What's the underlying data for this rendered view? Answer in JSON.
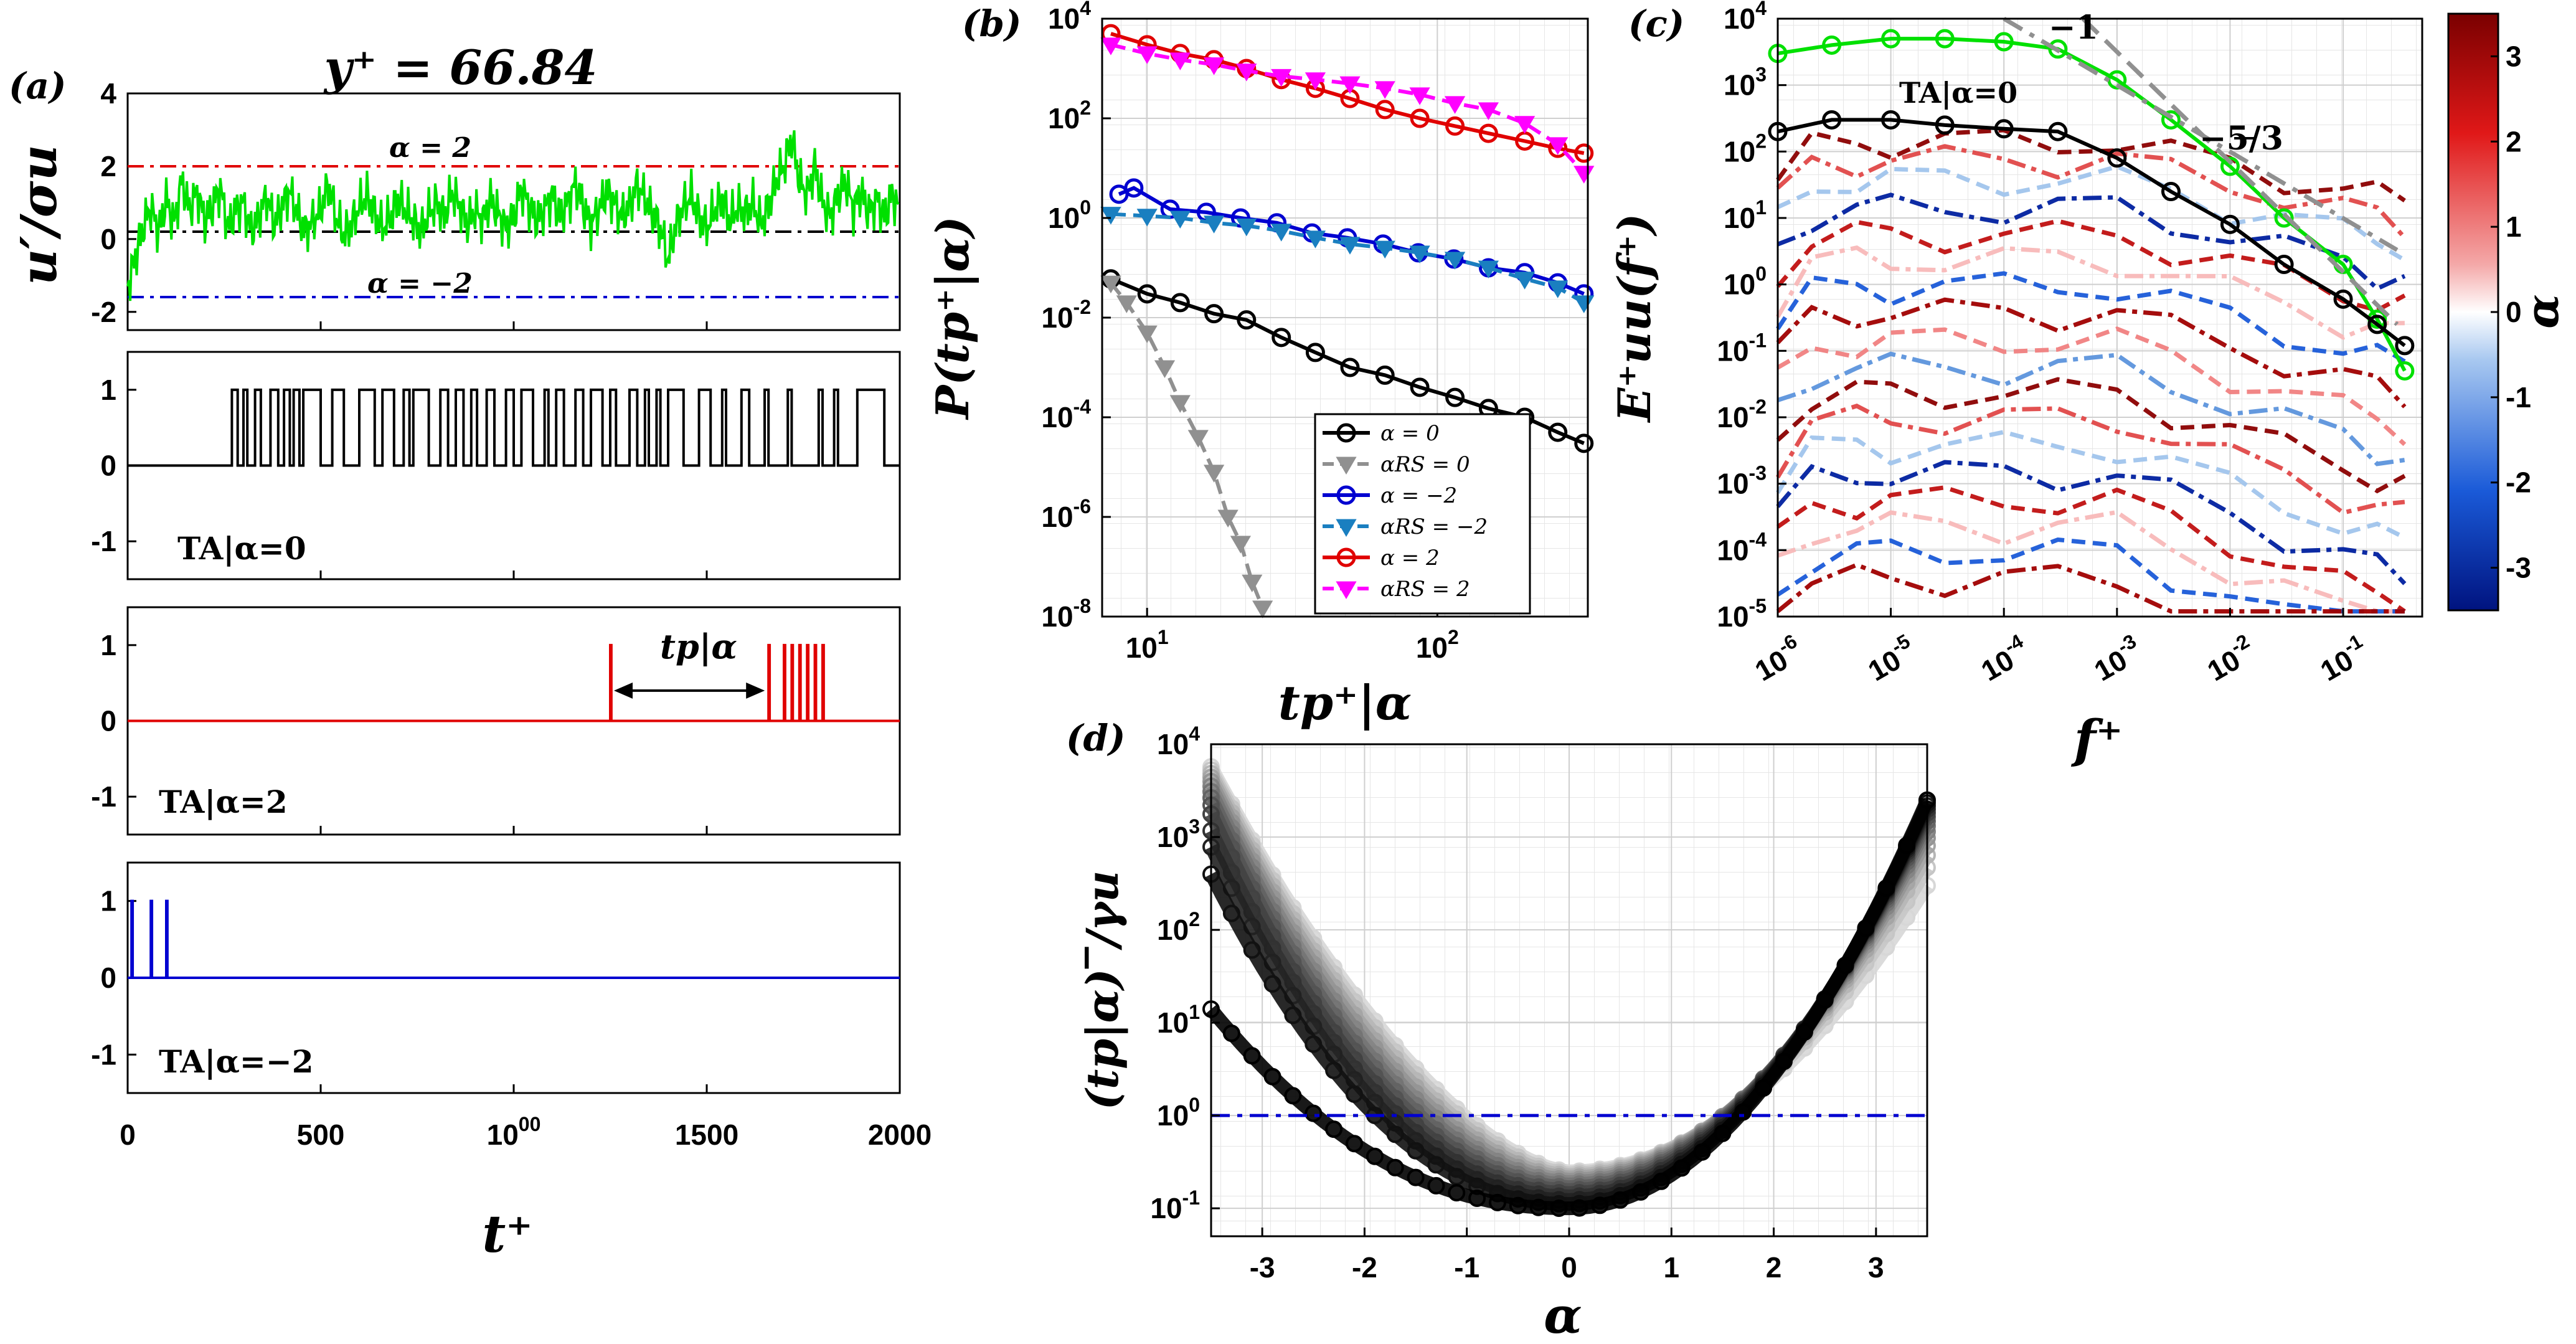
{
  "colors": {
    "green": "#00e000",
    "black": "#000000",
    "red": "#e00000",
    "blue": "#0000d0",
    "magenta": "#ff00ff",
    "teal": "#1a7fc0",
    "gray": "#909090",
    "darkred": "#8b0000",
    "navy": "#00137f"
  },
  "chart_data": [
    {
      "panel_label": "(a)",
      "type": "line",
      "title": "y⁺ = 66.84",
      "xlabel": "t⁺",
      "subplots": [
        {
          "ylabel": "u′/σu",
          "ylim": [
            -2.5,
            4
          ],
          "yticks": [
            "-2",
            "0",
            "2",
            "4"
          ],
          "xlim": [
            0,
            2000
          ],
          "series": [
            {
              "name": "",
              "color": "green",
              "values_note": "",
              "x": [
                0,
                20,
                40,
                60,
                80,
                100,
                120,
                140,
                160,
                180,
                200,
                220,
                240,
                260,
                280,
                300,
                320,
                340,
                360,
                380,
                400,
                420,
                440,
                460,
                480,
                500,
                520,
                540,
                560,
                580,
                600,
                620,
                640,
                660,
                680,
                700,
                720,
                740,
                760,
                780,
                800,
                820,
                840,
                860,
                880,
                900,
                920,
                940,
                960,
                980,
                1000,
                1020,
                1040,
                1060,
                1080,
                1100,
                1120,
                1140,
                1160,
                1180,
                1200,
                1220,
                1240,
                1260,
                1280,
                1300,
                1320,
                1340,
                1360,
                1380,
                1400,
                1420,
                1440,
                1460,
                1480,
                1500,
                1520,
                1540,
                1560,
                1580,
                1600,
                1620,
                1640,
                1660,
                1680,
                1700,
                1720,
                1740,
                1760,
                1780,
                1800,
                1820,
                1840,
                1860,
                1880,
                1900,
                1920,
                1940,
                1960,
                1980,
                2000
              ],
              "y": [
                -1.3,
                -0.5,
                0.3,
                0.9,
                0.2,
                1.1,
                0.4,
                1.6,
                0.8,
                1.3,
                0.5,
                0.9,
                1.4,
                0.3,
                0.8,
                1.0,
                0.2,
                0.6,
                1.2,
                0.4,
                0.9,
                1.3,
                0.7,
                0.2,
                0.5,
                0.8,
                1.5,
                0.6,
                0.1,
                0.4,
                0.9,
                1.2,
                0.7,
                0.3,
                0.6,
                1.1,
                0.8,
                0.5,
                0.2,
                0.7,
                1.0,
                0.6,
                1.3,
                0.9,
                0.4,
                0.8,
                0.5,
                1.1,
                0.7,
                0.3,
                0.6,
                1.4,
                0.9,
                0.5,
                0.8,
                1.2,
                0.6,
                1.0,
                1.5,
                0.9,
                0.4,
                0.8,
                1.3,
                1.0,
                0.6,
                0.9,
                1.5,
                1.1,
                0.7,
                0.3,
                -0.6,
                0.4,
                0.9,
                1.2,
                0.6,
                0.3,
                0.8,
                1.1,
                0.5,
                0.9,
                0.7,
                1.0,
                0.4,
                0.9,
                1.6,
                2.0,
                2.8,
                1.6,
                1.2,
                2.0,
                1.0,
                0.6,
                1.2,
                1.6,
                0.8,
                1.3,
                0.7,
                1.1,
                0.6,
                1.2,
                0.8
              ]
            },
            {
              "name": "α = 2",
              "color": "red",
              "dash": "dashdot",
              "constant": 2
            },
            {
              "name": "",
              "color": "black",
              "dash": "dashdot",
              "constant": 0
            },
            {
              "name": "α = −2",
              "color": "blue",
              "dash": "dashdot",
              "constant": -2
            }
          ]
        },
        {
          "ylabel": "",
          "ylim": [
            -1.5,
            1.5
          ],
          "yticks": [
            "-1",
            "0",
            "1"
          ],
          "xlim": [
            0,
            2000
          ],
          "annotation": "TA|α=0",
          "color": "black",
          "pulses": [
            [
              270,
              285
            ],
            [
              300,
              310
            ],
            [
              330,
              345
            ],
            [
              370,
              390
            ],
            [
              405,
              420
            ],
            [
              430,
              445
            ],
            [
              455,
              500
            ],
            [
              530,
              560
            ],
            [
              600,
              640
            ],
            [
              660,
              690
            ],
            [
              715,
              730
            ],
            [
              740,
              780
            ],
            [
              810,
              830
            ],
            [
              850,
              870
            ],
            [
              890,
              905
            ],
            [
              930,
              950
            ],
            [
              980,
              1000
            ],
            [
              1020,
              1050
            ],
            [
              1080,
              1090
            ],
            [
              1110,
              1130
            ],
            [
              1160,
              1180
            ],
            [
              1200,
              1230
            ],
            [
              1250,
              1265
            ],
            [
              1300,
              1320
            ],
            [
              1340,
              1350
            ],
            [
              1370,
              1380
            ],
            [
              1400,
              1440
            ],
            [
              1480,
              1510
            ],
            [
              1540,
              1550
            ],
            [
              1590,
              1610
            ],
            [
              1650,
              1660
            ],
            [
              1710,
              1720
            ],
            [
              1790,
              1800
            ],
            [
              1830,
              1840
            ],
            [
              1890,
              1960
            ]
          ]
        },
        {
          "ylabel": "",
          "ylim": [
            -1.5,
            1.5
          ],
          "yticks": [
            "-1",
            "0",
            "1"
          ],
          "xlim": [
            0,
            2000
          ],
          "annotation": "TA|α=2",
          "color": "red",
          "arrow_label": "tp|α",
          "arrow_from": 1250,
          "arrow_to": 1660,
          "spikes": [
            1250,
            1660,
            1700,
            1720,
            1740,
            1760,
            1780,
            1800
          ]
        },
        {
          "ylabel": "",
          "ylim": [
            -1.5,
            1.5
          ],
          "yticks": [
            "-1",
            "0",
            "1"
          ],
          "xlim": [
            0,
            2000
          ],
          "annotation": "TA|α=−2",
          "color": "blue",
          "spikes": [
            10,
            60,
            100
          ]
        }
      ],
      "xticks": [
        "0",
        "500",
        "1000",
        "1500",
        "2000"
      ]
    },
    {
      "panel_label": "(b)",
      "type": "line",
      "xlabel": "tp⁺|α",
      "ylabel": "P(tp⁺|α)",
      "xscale": "log",
      "yscale": "log",
      "xlim": [
        7,
        330
      ],
      "ylim": [
        1e-08,
        10000.0
      ],
      "yticks": [
        "10-8",
        "10-6",
        "10-4",
        "10-2",
        "100",
        "102",
        "104"
      ],
      "xticks": [
        "101",
        "102"
      ],
      "legend_position": "bottom-right",
      "series": [
        {
          "name": "α = 0",
          "color": "black",
          "marker": "circle",
          "x": [
            7.5,
            10,
            13,
            17,
            22,
            29,
            38,
            50,
            66,
            87,
            115,
            150,
            200,
            260,
            320
          ],
          "y": [
            0.06,
            0.03,
            0.02,
            0.012,
            0.009,
            0.004,
            0.002,
            0.001,
            0.0007,
            0.0004,
            0.00025,
            0.00015,
            0.0001,
            5e-05,
            3e-05
          ]
        },
        {
          "name": "αRS = 0",
          "color": "gray",
          "marker": "triangle-down",
          "x": [
            7.5,
            8.5,
            10,
            11.5,
            13,
            15,
            17,
            19,
            21,
            23,
            25
          ],
          "y": [
            0.05,
            0.02,
            0.005,
            0.001,
            0.0002,
            4e-05,
            8e-06,
            1e-06,
            3e-07,
            5e-08,
            1.5e-08
          ]
        },
        {
          "name": "α = −2",
          "color": "blue",
          "marker": "circle",
          "x": [
            8,
            9,
            12,
            16,
            21,
            28,
            37,
            49,
            65,
            86,
            114,
            150,
            200,
            260,
            320
          ],
          "y": [
            3,
            4,
            1.5,
            1.3,
            1,
            0.8,
            0.5,
            0.4,
            0.3,
            0.2,
            0.15,
            0.1,
            0.08,
            0.05,
            0.03
          ]
        },
        {
          "name": "αRS = −2",
          "color": "teal",
          "marker": "triangle-down",
          "x": [
            7.5,
            10,
            13,
            17,
            22,
            29,
            38,
            50,
            66,
            87,
            115,
            150,
            200,
            260,
            320
          ],
          "y": [
            1.2,
            1.1,
            1.0,
            0.8,
            0.7,
            0.55,
            0.4,
            0.3,
            0.25,
            0.2,
            0.15,
            0.1,
            0.06,
            0.04,
            0.02
          ]
        },
        {
          "name": "α = 2",
          "color": "red",
          "marker": "circle",
          "x": [
            7.5,
            10,
            13,
            17,
            22,
            29,
            38,
            50,
            66,
            87,
            115,
            150,
            200,
            260,
            320
          ],
          "y": [
            5000,
            3000,
            2000,
            1500,
            1000,
            600,
            400,
            250,
            150,
            100,
            70,
            50,
            35,
            25,
            20
          ]
        },
        {
          "name": "αRS = 2",
          "color": "magenta",
          "marker": "triangle-down",
          "x": [
            7.5,
            10,
            13,
            17,
            22,
            29,
            38,
            50,
            66,
            87,
            115,
            150,
            200,
            260,
            320
          ],
          "y": [
            3000,
            2000,
            1500,
            1200,
            900,
            700,
            600,
            500,
            400,
            300,
            200,
            150,
            80,
            30,
            8
          ]
        }
      ]
    },
    {
      "panel_label": "(c)",
      "type": "line",
      "xlabel": "f⁺",
      "ylabel": "E⁺uu(f⁺)",
      "xscale": "log",
      "yscale": "log",
      "xlim": [
        1e-06,
        0.5
      ],
      "ylim": [
        1e-05,
        10000.0
      ],
      "xticks": [
        "10-6",
        "10-5",
        "10-4",
        "10-3",
        "10-2",
        "10-1"
      ],
      "yticks": [
        "10-5",
        "10-4",
        "10-3",
        "10-2",
        "10-1",
        "100",
        "101",
        "102",
        "103",
        "104"
      ],
      "annotations": [
        "−1",
        "−5/3",
        "TA|α=0"
      ],
      "colorbar": {
        "label": "α",
        "ticks": [
          "-3",
          "-2",
          "-1",
          "0",
          "1",
          "2",
          "3"
        ],
        "range": [
          -3.5,
          3.5
        ]
      },
      "series": [
        {
          "name": "u′",
          "color": "green",
          "marker": "circle",
          "x": [
            1e-06,
            3e-06,
            1e-05,
            3e-05,
            0.0001,
            0.0003,
            0.001,
            0.003,
            0.01,
            0.03,
            0.1,
            0.2,
            0.35
          ],
          "y": [
            3000,
            4000,
            5000,
            5000,
            4500,
            3500,
            1200,
            300,
            60,
            10,
            2,
            0.3,
            0.05
          ]
        },
        {
          "name": "TA|α=0",
          "color": "black",
          "marker": "circle",
          "x": [
            1e-06,
            3e-06,
            1e-05,
            3e-05,
            0.0001,
            0.0003,
            0.001,
            0.003,
            0.01,
            0.03,
            0.1,
            0.2,
            0.35
          ],
          "y": [
            200,
            300,
            300,
            250,
            220,
            200,
            80,
            25,
            8,
            2,
            0.6,
            0.25,
            0.12
          ]
        },
        {
          "name": "slope −1",
          "color": "gray",
          "dash": "dashdot",
          "x": [
            0.0001,
            0.3
          ],
          "y": [
            10000.0,
            3.3
          ]
        },
        {
          "name": "slope −5/3",
          "color": "gray",
          "dash": "dash",
          "x": [
            0.0005,
            0.3
          ],
          "y": [
            10000.0,
            0.25
          ]
        }
      ],
      "alpha_family_levels": [
        150,
        80,
        40,
        15,
        6,
        2.5,
        1,
        0.4,
        0.15,
        0.06,
        0.025,
        0.01,
        0.004,
        0.0015,
        0.0006,
        0.00025,
        0.0001,
        4e-05
      ]
    },
    {
      "panel_label": "(d)",
      "type": "line",
      "xlabel": "α",
      "ylabel": "(tp|α)‾/γu",
      "yscale": "log",
      "xlim": [
        -3.5,
        3.5
      ],
      "ylim": [
        0.05,
        10000.0
      ],
      "xticks": [
        "-3",
        "-2",
        "-1",
        "0",
        "1",
        "2",
        "3"
      ],
      "yticks": [
        "10-1",
        "100",
        "101",
        "102",
        "103",
        "104"
      ],
      "reference_line": {
        "y": 1,
        "color": "blue",
        "dash": "dashdot"
      }
    }
  ]
}
